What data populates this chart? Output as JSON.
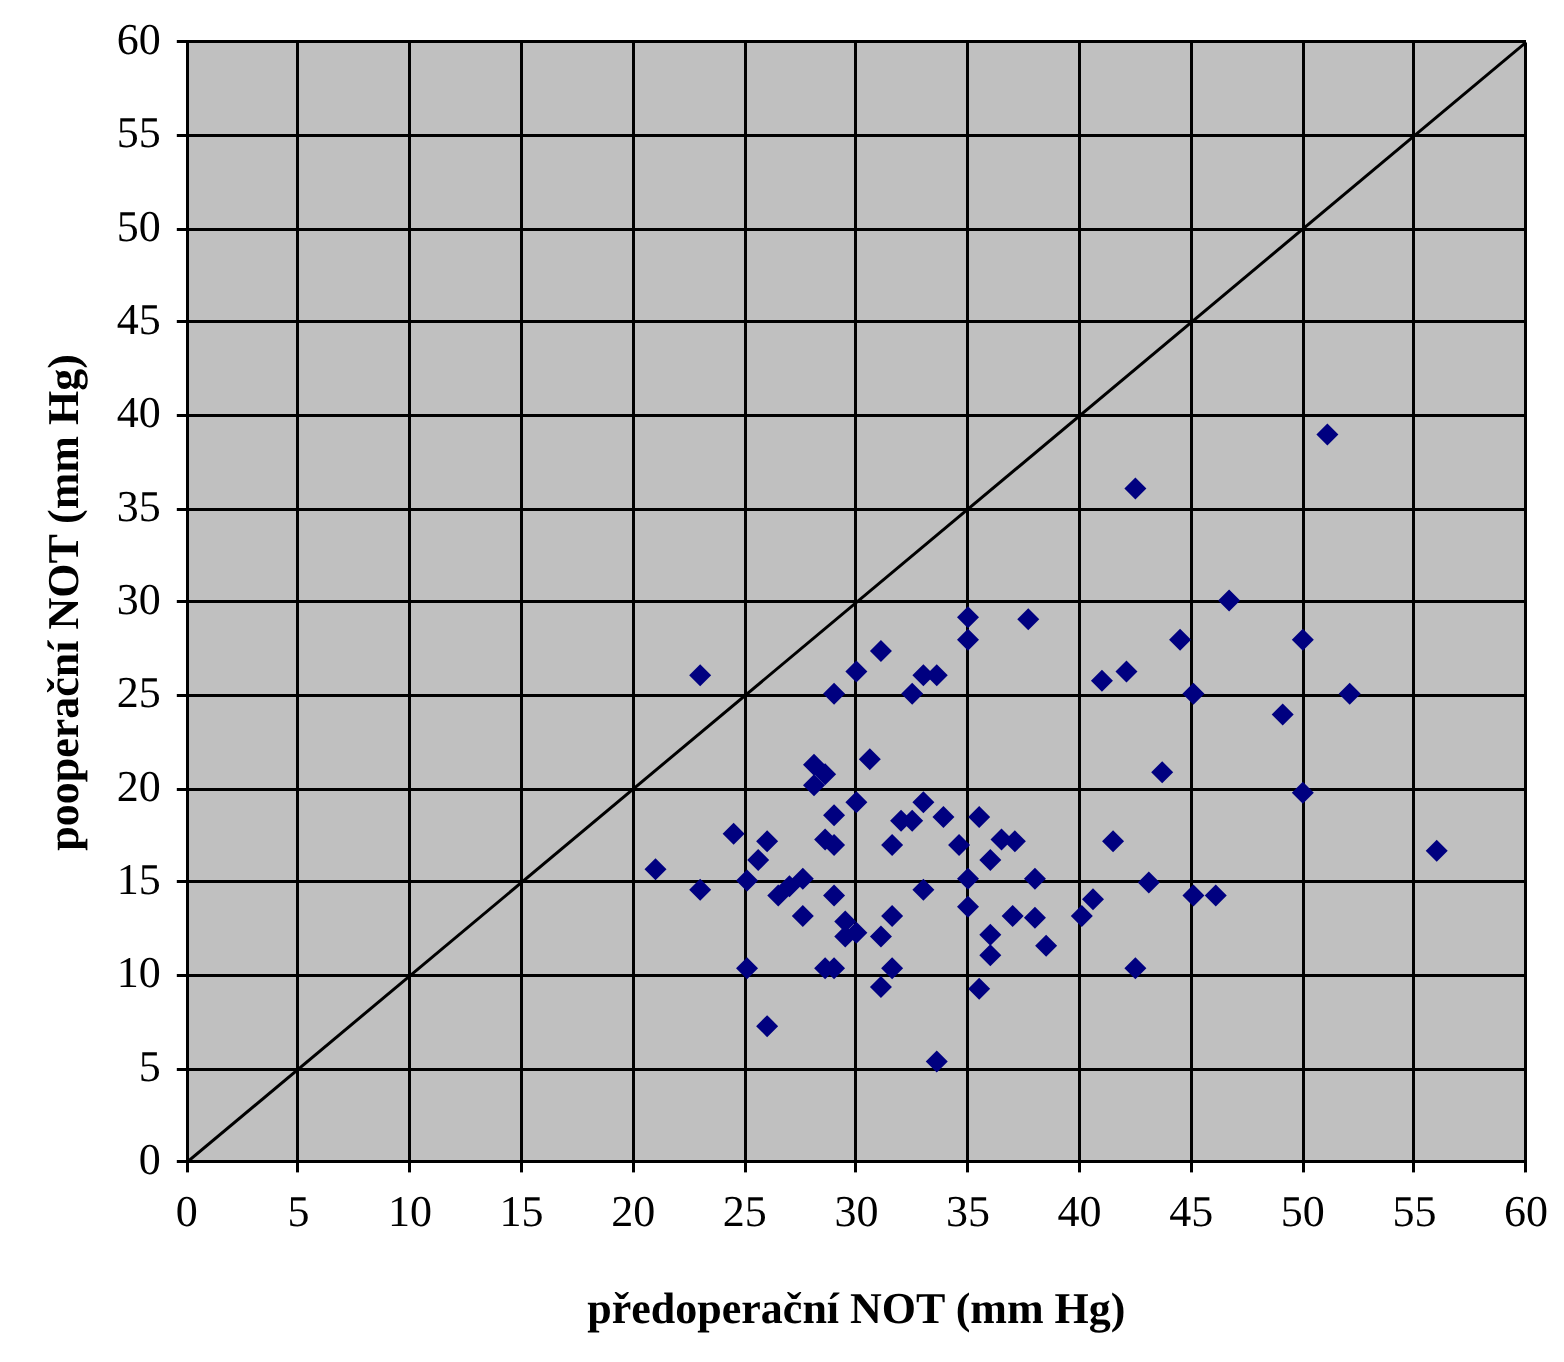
{
  "chart_data": {
    "type": "scatter",
    "xlabel": "předoperační NOT (mm Hg)",
    "ylabel": "pooperační NOT (mm Hg)",
    "xlim": [
      0,
      60
    ],
    "xticks": [
      0,
      5,
      10,
      15,
      20,
      25,
      30,
      35,
      40,
      45,
      50,
      55,
      60
    ],
    "ylim": [
      0,
      60
    ],
    "yticks": [
      0,
      5,
      10,
      15,
      20,
      25,
      30,
      35,
      40,
      45,
      50,
      55,
      60
    ],
    "grid": true,
    "legend": false,
    "marker": "diamond",
    "series": [
      {
        "color": "#000080",
        "x": [
          23,
          21,
          23,
          24.5,
          26,
          25.6,
          25.1,
          26.5,
          27,
          27.6,
          27.6,
          25.1,
          26,
          29,
          30,
          31.1,
          33,
          33.6,
          32.5,
          28.1,
          28.6,
          28.1,
          30.6,
          30,
          29,
          28.6,
          29,
          33,
          32,
          32.5,
          33.9,
          31.6,
          33,
          29,
          29.5,
          30,
          29.5,
          31.6,
          31.1,
          28.6,
          29,
          31.6,
          31.1,
          33.6,
          42.5,
          35,
          35,
          37.7,
          44.5,
          41,
          42.1,
          45.1,
          43.7,
          35.5,
          34.6,
          36.5,
          37.1,
          36,
          41.5,
          35,
          38,
          43.1,
          45.1,
          46.1,
          35,
          37,
          38,
          36,
          36,
          38.5,
          40.1,
          40.6,
          42.5,
          35.5,
          51.1,
          46.7,
          50,
          52.1,
          49.1,
          50,
          56
        ],
        "values": [
          26.1,
          15.7,
          14.6,
          17.6,
          17.2,
          16.2,
          15.1,
          14.3,
          14.8,
          15.2,
          13.2,
          10.4,
          7.3,
          25.1,
          26.3,
          27.4,
          26.1,
          26.1,
          25.1,
          21.3,
          20.8,
          20.2,
          21.6,
          19.3,
          18.6,
          17.3,
          17,
          19.3,
          18.3,
          18.3,
          18.5,
          17,
          14.6,
          14.3,
          12.9,
          12.3,
          12.1,
          13.2,
          12.1,
          10.4,
          10.4,
          10.4,
          9.4,
          5.4,
          36.1,
          29.2,
          28,
          29.1,
          28,
          25.8,
          26.3,
          25.1,
          20.9,
          18.5,
          17,
          17.3,
          17.2,
          16.2,
          17.2,
          15.2,
          15.2,
          15,
          14.3,
          14.3,
          13.7,
          13.2,
          13.1,
          12.2,
          11.1,
          11.6,
          13.2,
          14.1,
          10.4,
          9.3,
          39,
          30.1,
          28,
          25.1,
          24,
          19.8,
          16.7
        ]
      },
      {
        "type": "line",
        "color": "#000000",
        "marker": "none",
        "line_style": "solid",
        "x": [
          0,
          60
        ],
        "values": [
          0,
          60
        ]
      }
    ]
  }
}
